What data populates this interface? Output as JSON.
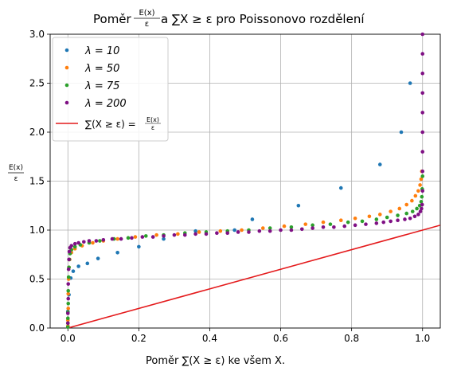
{
  "chart_data": {
    "type": "scatter",
    "title": "Poměr E(x)/ε a ∑X ≥ ε pro Poissonovo rozdělení",
    "title_parts": {
      "prefix": "Poměr ",
      "frac_num": "E(x)",
      "frac_den": "ε",
      "suffix": " a ∑X ≥ ε pro Poissonovo rozdělení"
    },
    "xlabel": "Poměr ∑(X ≥ ε) ke všem X.",
    "ylabel": {
      "num": "E(x)",
      "den": "ε"
    },
    "xlim": [
      -0.05,
      1.05
    ],
    "ylim": [
      0,
      3.0
    ],
    "xticks": [
      "0.0",
      "0.2",
      "0.4",
      "0.6",
      "0.8",
      "1.0"
    ],
    "xtick_values": [
      0,
      0.2,
      0.4,
      0.6,
      0.8,
      1.0
    ],
    "yticks": [
      "0.0",
      "0.5",
      "1.0",
      "1.5",
      "2.0",
      "2.5",
      "3.0"
    ],
    "ytick_values": [
      0,
      0.5,
      1.0,
      1.5,
      2.0,
      2.5,
      3.0
    ],
    "grid": true,
    "legend_position": "top-left",
    "series": [
      {
        "name": "λ = 10",
        "color": "#1f77b4",
        "points": [
          [
            0.0,
            0.17
          ],
          [
            0.003,
            0.34
          ],
          [
            0.008,
            0.51
          ],
          [
            0.015,
            0.58
          ],
          [
            0.03,
            0.63
          ],
          [
            0.055,
            0.66
          ],
          [
            0.085,
            0.71
          ],
          [
            0.14,
            0.77
          ],
          [
            0.2,
            0.83
          ],
          [
            0.27,
            0.91
          ],
          [
            0.36,
            0.99
          ],
          [
            0.47,
            1.0
          ],
          [
            0.52,
            1.11
          ],
          [
            0.65,
            1.25
          ],
          [
            0.77,
            1.43
          ],
          [
            0.88,
            1.67
          ],
          [
            0.94,
            2.0
          ],
          [
            0.965,
            2.5
          ]
        ]
      },
      {
        "name": "λ = 50",
        "color": "#ff7f0e",
        "points": [
          [
            0.0,
            0.02
          ],
          [
            0.0,
            0.08
          ],
          [
            0.001,
            0.2
          ],
          [
            0.001,
            0.35
          ],
          [
            0.002,
            0.5
          ],
          [
            0.003,
            0.62
          ],
          [
            0.005,
            0.7
          ],
          [
            0.01,
            0.77
          ],
          [
            0.02,
            0.81
          ],
          [
            0.04,
            0.84
          ],
          [
            0.07,
            0.87
          ],
          [
            0.1,
            0.89
          ],
          [
            0.14,
            0.91
          ],
          [
            0.19,
            0.93
          ],
          [
            0.25,
            0.95
          ],
          [
            0.31,
            0.96
          ],
          [
            0.37,
            0.98
          ],
          [
            0.43,
            0.99
          ],
          [
            0.49,
            1.0
          ],
          [
            0.55,
            1.02
          ],
          [
            0.61,
            1.04
          ],
          [
            0.67,
            1.06
          ],
          [
            0.72,
            1.08
          ],
          [
            0.77,
            1.1
          ],
          [
            0.81,
            1.12
          ],
          [
            0.85,
            1.14
          ],
          [
            0.88,
            1.16
          ],
          [
            0.91,
            1.19
          ],
          [
            0.935,
            1.22
          ],
          [
            0.955,
            1.26
          ],
          [
            0.97,
            1.3
          ],
          [
            0.98,
            1.35
          ],
          [
            0.988,
            1.4
          ],
          [
            0.993,
            1.46
          ],
          [
            0.996,
            1.52
          ],
          [
            0.998,
            1.6
          ]
        ]
      },
      {
        "name": "λ = 75",
        "color": "#2ca02c",
        "points": [
          [
            0.0,
            0.01
          ],
          [
            0.0,
            0.05
          ],
          [
            0.0,
            0.1
          ],
          [
            0.0,
            0.16
          ],
          [
            0.001,
            0.25
          ],
          [
            0.001,
            0.38
          ],
          [
            0.002,
            0.52
          ],
          [
            0.003,
            0.62
          ],
          [
            0.004,
            0.7
          ],
          [
            0.006,
            0.76
          ],
          [
            0.01,
            0.8
          ],
          [
            0.02,
            0.83
          ],
          [
            0.035,
            0.85
          ],
          [
            0.06,
            0.87
          ],
          [
            0.09,
            0.89
          ],
          [
            0.13,
            0.91
          ],
          [
            0.17,
            0.92
          ],
          [
            0.22,
            0.94
          ],
          [
            0.27,
            0.95
          ],
          [
            0.33,
            0.97
          ],
          [
            0.39,
            0.98
          ],
          [
            0.45,
            0.99
          ],
          [
            0.51,
            1.0
          ],
          [
            0.57,
            1.02
          ],
          [
            0.63,
            1.03
          ],
          [
            0.69,
            1.05
          ],
          [
            0.74,
            1.06
          ],
          [
            0.79,
            1.08
          ],
          [
            0.83,
            1.09
          ],
          [
            0.87,
            1.11
          ],
          [
            0.9,
            1.13
          ],
          [
            0.93,
            1.15
          ],
          [
            0.955,
            1.17
          ],
          [
            0.972,
            1.19
          ],
          [
            0.984,
            1.22
          ],
          [
            0.992,
            1.25
          ],
          [
            0.996,
            1.29
          ],
          [
            0.998,
            1.34
          ],
          [
            0.999,
            1.42
          ],
          [
            1.0,
            1.55
          ]
        ]
      },
      {
        "name": "λ = 200",
        "color": "#7f1084",
        "points": [
          [
            0.0,
            0.05
          ],
          [
            0.0,
            0.15
          ],
          [
            0.001,
            0.3
          ],
          [
            0.001,
            0.45
          ],
          [
            0.002,
            0.6
          ],
          [
            0.003,
            0.7
          ],
          [
            0.004,
            0.78
          ],
          [
            0.006,
            0.82
          ],
          [
            0.01,
            0.84
          ],
          [
            0.02,
            0.86
          ],
          [
            0.03,
            0.87
          ],
          [
            0.045,
            0.88
          ],
          [
            0.06,
            0.89
          ],
          [
            0.08,
            0.89
          ],
          [
            0.1,
            0.9
          ],
          [
            0.125,
            0.91
          ],
          [
            0.15,
            0.91
          ],
          [
            0.18,
            0.92
          ],
          [
            0.21,
            0.93
          ],
          [
            0.24,
            0.93
          ],
          [
            0.27,
            0.94
          ],
          [
            0.3,
            0.95
          ],
          [
            0.33,
            0.95
          ],
          [
            0.36,
            0.96
          ],
          [
            0.39,
            0.96
          ],
          [
            0.42,
            0.97
          ],
          [
            0.45,
            0.97
          ],
          [
            0.48,
            0.98
          ],
          [
            0.51,
            0.98
          ],
          [
            0.54,
            0.99
          ],
          [
            0.57,
            0.99
          ],
          [
            0.6,
            1.0
          ],
          [
            0.63,
            1.0
          ],
          [
            0.66,
            1.01
          ],
          [
            0.69,
            1.02
          ],
          [
            0.72,
            1.03
          ],
          [
            0.75,
            1.03
          ],
          [
            0.78,
            1.04
          ],
          [
            0.81,
            1.05
          ],
          [
            0.84,
            1.06
          ],
          [
            0.87,
            1.07
          ],
          [
            0.89,
            1.08
          ],
          [
            0.91,
            1.09
          ],
          [
            0.93,
            1.1
          ],
          [
            0.95,
            1.11
          ],
          [
            0.965,
            1.12
          ],
          [
            0.978,
            1.14
          ],
          [
            0.988,
            1.16
          ],
          [
            0.994,
            1.19
          ],
          [
            0.997,
            1.22
          ],
          [
            0.999,
            1.26
          ],
          [
            1.0,
            1.4
          ],
          [
            1.0,
            1.6
          ],
          [
            1.0,
            1.8
          ],
          [
            1.0,
            2.0
          ],
          [
            1.0,
            2.2
          ],
          [
            1.0,
            2.4
          ],
          [
            1.0,
            2.6
          ],
          [
            1.0,
            2.8
          ],
          [
            1.0,
            3.0
          ]
        ]
      }
    ],
    "reference_line": {
      "name": "∑(X ≥ ε) = E(x)/ε",
      "name_parts": {
        "lhs": "∑(X ≥ ε) = ",
        "frac_num": "E(x)",
        "frac_den": "ε"
      },
      "color": "#e41a1c",
      "points": [
        [
          0,
          0
        ],
        [
          1.05,
          1.05
        ]
      ]
    }
  }
}
